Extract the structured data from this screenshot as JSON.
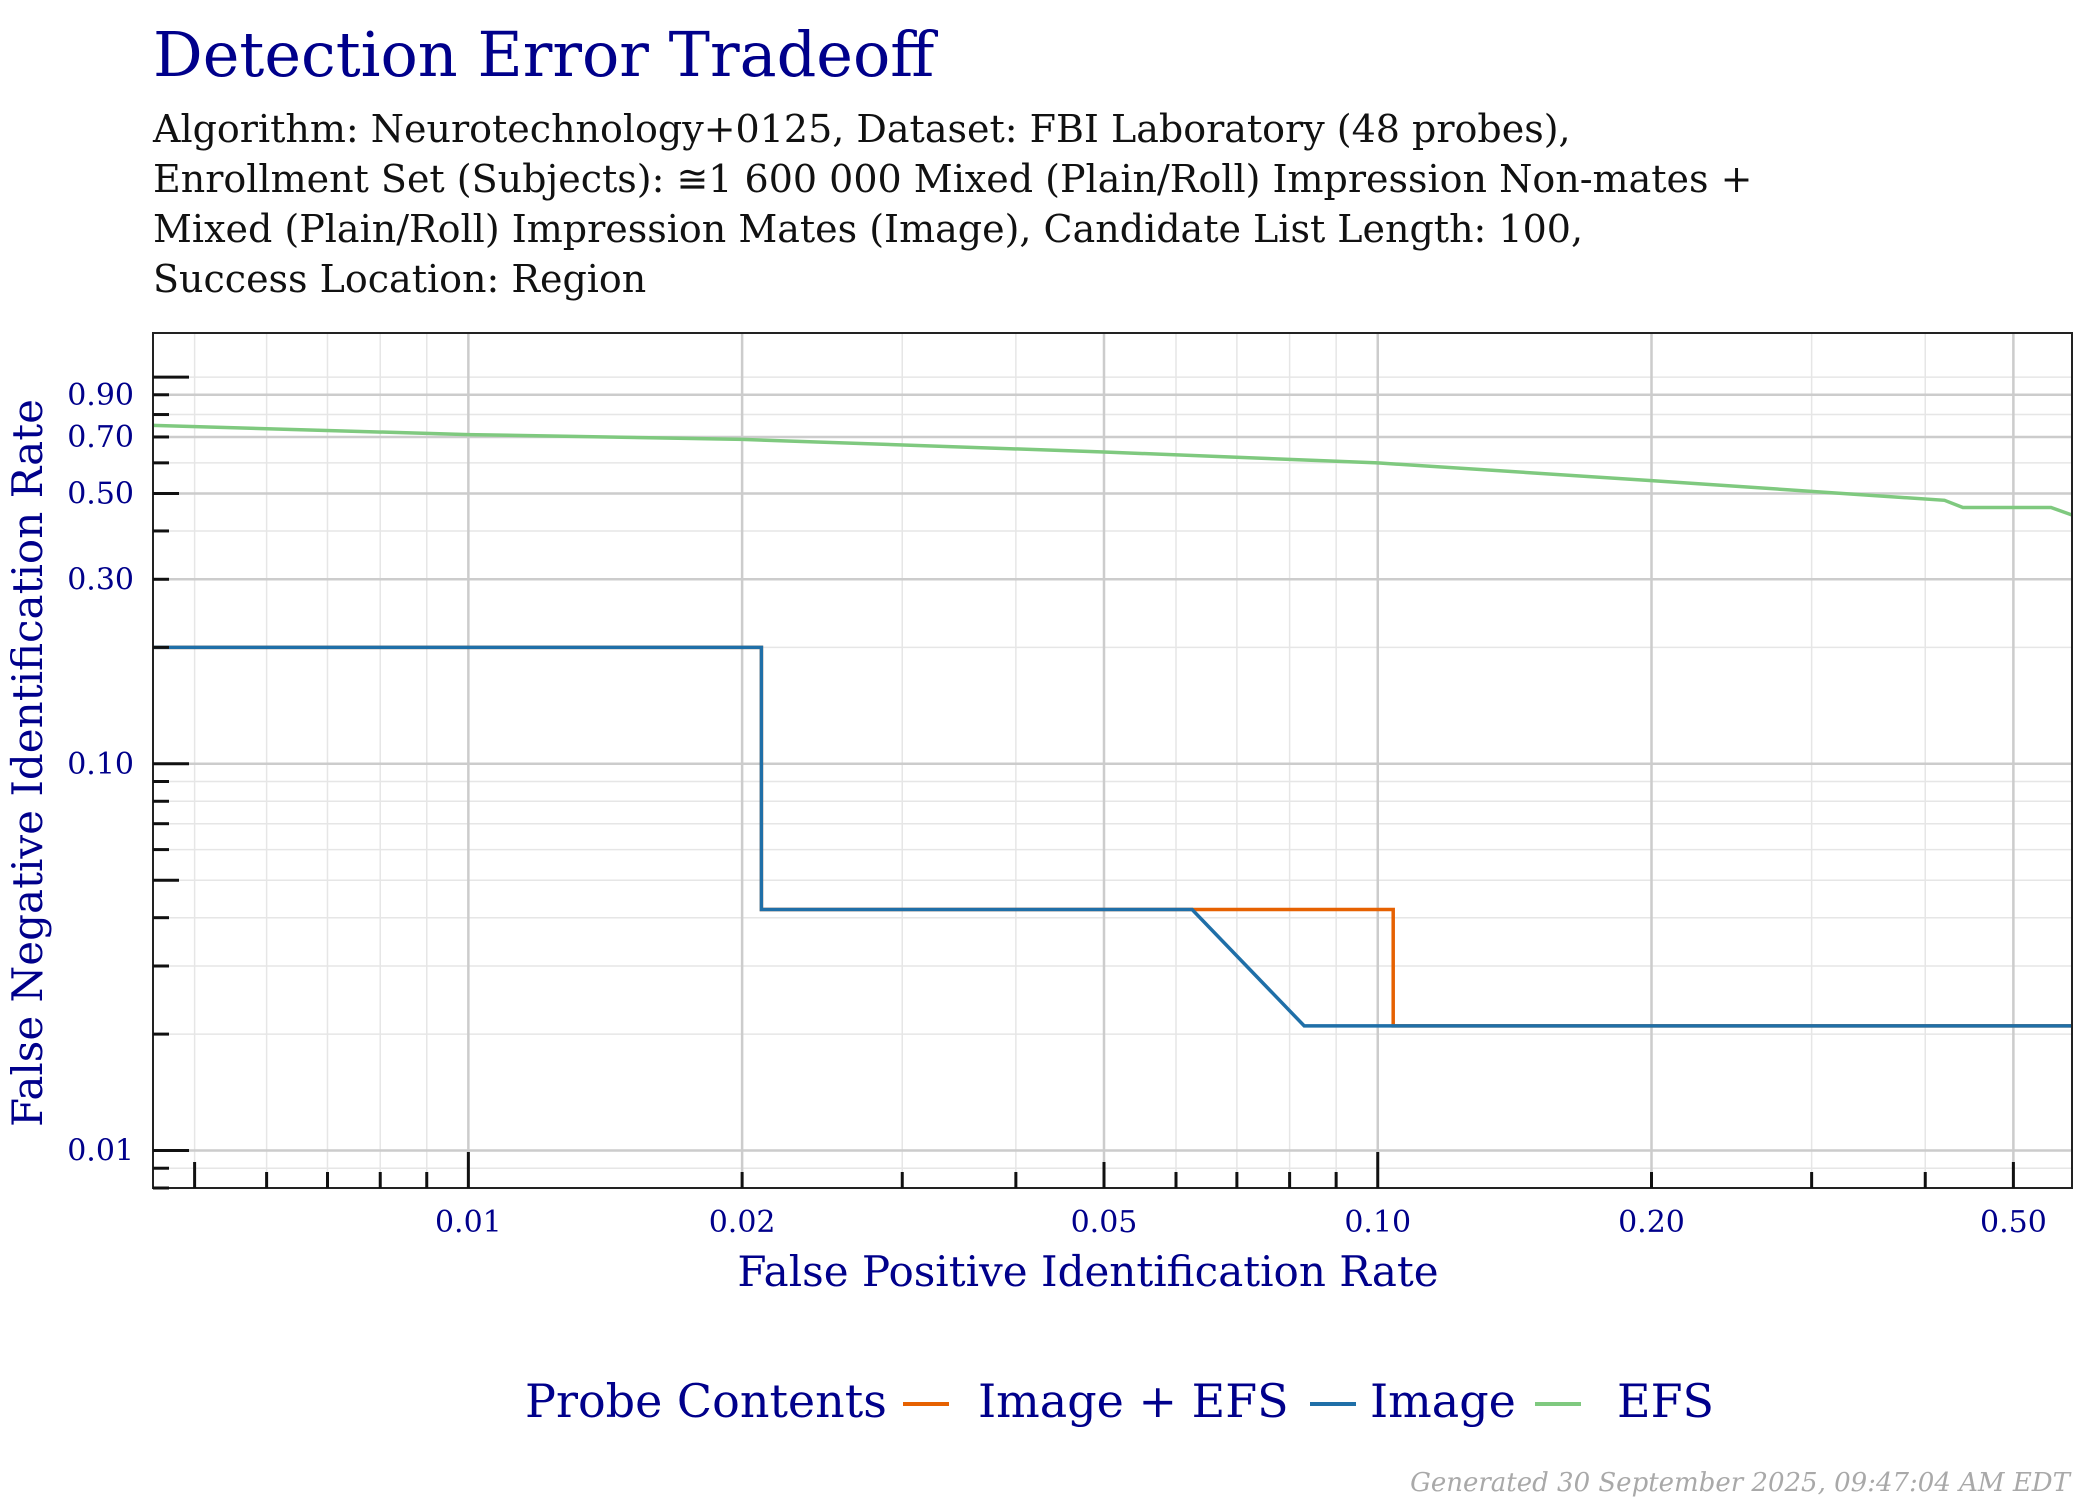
{
  "title": "Detection Error Tradeoff",
  "subtitle_lines": [
    "Algorithm: Neurotechnology+0125, Dataset: FBI Laboratory (48 probes),",
    "Enrollment Set (Subjects): ≅1 600 000 Mixed (Plain/Roll) Impression Non-mates +",
    "Mixed (Plain/Roll) Impression Mates (Image), Candidate List Length: 100,",
    "Success Location: Region"
  ],
  "footer": "Generated 30 September 2025, 09:47:04 AM EDT",
  "colors": {
    "text_blue": "#00008b",
    "grid_major": "#cccccc",
    "grid_minor": "#e6e6e6",
    "image_efs": "#e66101",
    "image": "#1f6fa8",
    "efs": "#7fc97f"
  },
  "chart_data": {
    "type": "line",
    "xlabel": "False Positive Identification Rate",
    "ylabel": "False Negative Identification Rate",
    "x_scale": "log",
    "y_scale": "log",
    "xlim": [
      0.0045,
      0.58
    ],
    "ylim": [
      0.008,
      1.3
    ],
    "x_ticks": [
      0.01,
      0.02,
      0.05,
      0.1,
      0.2,
      0.5
    ],
    "x_tick_labels": [
      "0.01",
      "0.02",
      "0.05",
      "0.10",
      "0.20",
      "0.50"
    ],
    "y_ticks": [
      0.01,
      0.1,
      0.3,
      0.5,
      0.7,
      0.9
    ],
    "y_tick_labels": [
      "0.01",
      "0.10",
      "0.30",
      "0.50",
      "0.70",
      "0.90"
    ],
    "grid": true,
    "legend_title": "Probe Contents",
    "legend_position": "bottom",
    "series": [
      {
        "name": "Image + EFS",
        "color": "#e66101",
        "x": [
          0.0045,
          0.021,
          0.021,
          0.0625,
          0.104,
          0.104,
          0.58
        ],
        "y": [
          0.2,
          0.2,
          0.042,
          0.042,
          0.042,
          0.021,
          0.021
        ]
      },
      {
        "name": "Image",
        "color": "#1f6fa8",
        "x": [
          0.0045,
          0.021,
          0.021,
          0.0625,
          0.083,
          0.58
        ],
        "y": [
          0.2,
          0.2,
          0.042,
          0.042,
          0.021,
          0.021
        ]
      },
      {
        "name": "EFS",
        "color": "#7fc97f",
        "x": [
          0.0045,
          0.01,
          0.02,
          0.05,
          0.1,
          0.2,
          0.42,
          0.44,
          0.55,
          0.58
        ],
        "y": [
          0.75,
          0.71,
          0.69,
          0.64,
          0.6,
          0.54,
          0.48,
          0.46,
          0.46,
          0.44
        ]
      }
    ]
  }
}
